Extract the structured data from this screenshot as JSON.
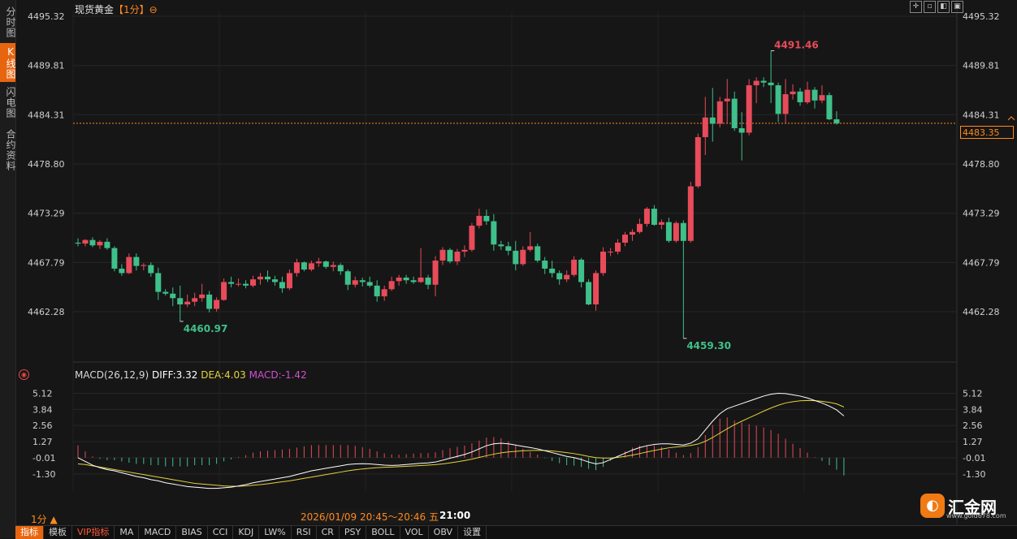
{
  "side_tabs": [
    {
      "label": "分时图",
      "active": false
    },
    {
      "label": "K线图",
      "active": true
    },
    {
      "label": "闪电图",
      "active": false
    },
    {
      "label": "合约资料",
      "active": false
    }
  ],
  "header": {
    "instrument": "现货黄金",
    "period_tag": "【1分】",
    "period_icon": "⊖"
  },
  "toolbar": {
    "icons": [
      "crosshair-icon",
      "zoom-in-icon",
      "zoom-out-icon",
      "fullscreen-icon"
    ]
  },
  "price_axis": {
    "ticks": [
      "4495.32",
      "4489.81",
      "4484.31",
      "4478.80",
      "4473.29",
      "4467.79",
      "4462.28"
    ],
    "range": [
      4457.2,
      4495.32
    ]
  },
  "current_price": {
    "label": "4483.35",
    "value": 4483.35
  },
  "annotations": {
    "high": "4491.46",
    "low_left": "4460.97",
    "low_main": "4459.30"
  },
  "macd": {
    "label": "MACD(26,12,9)",
    "diff_label": "DIFF:3.32",
    "dea_label": "DEA:4.03",
    "macd_label": "MACD:-1.42",
    "ticks": [
      "5.12",
      "3.84",
      "2.56",
      "1.27",
      "-0.01",
      "-1.30"
    ]
  },
  "colors": {
    "up": "#e84b5a",
    "down": "#3fc08a",
    "dea": "#e6d23a",
    "diff": "#ffffff",
    "accent": "#ff8a1f",
    "macd_text": "#d050d0"
  },
  "footer": {
    "period": "1分 ▲",
    "time_range": "2026/01/09 20:45～20:46 五",
    "time_end": "21:00",
    "tabs": [
      "指标",
      "模板",
      "VIP指标",
      "MA",
      "MACD",
      "BIAS",
      "CCI",
      "KDJ",
      "LW%",
      "RSI",
      "CR",
      "PSY",
      "BOLL",
      "VOL",
      "OBV",
      "设置"
    ]
  },
  "logo": {
    "name": "汇金网",
    "url": "www.gold678.com"
  },
  "chart_data": {
    "type": "candlestick",
    "title": "现货黄金【1分】",
    "ylim": [
      4457.2,
      4495.32
    ],
    "candles": [
      [
        4470.0,
        4470.5,
        4469.6,
        4469.9
      ],
      [
        4469.9,
        4470.4,
        4469.6,
        4470.3
      ],
      [
        4470.3,
        4470.6,
        4469.5,
        4469.7
      ],
      [
        4469.7,
        4470.3,
        4469.3,
        4470.1
      ],
      [
        4470.1,
        4470.5,
        4469.2,
        4469.4
      ],
      [
        4469.4,
        4469.6,
        4466.8,
        4467.1
      ],
      [
        4467.1,
        4467.6,
        4466.3,
        4466.6
      ],
      [
        4466.6,
        4468.8,
        4466.5,
        4468.4
      ],
      [
        4468.4,
        4468.8,
        4466.9,
        4467.4
      ],
      [
        4467.4,
        4467.7,
        4466.9,
        4467.5
      ],
      [
        4467.5,
        4467.8,
        4466.2,
        4466.6
      ],
      [
        4466.6,
        4467.2,
        4463.6,
        4464.5
      ],
      [
        4464.5,
        4464.8,
        4464.1,
        4464.3
      ],
      [
        4464.3,
        4465.0,
        4462.9,
        4463.8
      ],
      [
        4463.8,
        4465.2,
        4461.2,
        4463.1
      ],
      [
        4463.1,
        4464.2,
        4462.8,
        4463.4
      ],
      [
        4463.4,
        4464.4,
        4462.9,
        4463.8
      ],
      [
        4463.8,
        4465.4,
        4463.4,
        4464.2
      ],
      [
        4464.2,
        4464.6,
        4462.2,
        4462.6
      ],
      [
        4462.6,
        4463.9,
        4462.3,
        4463.6
      ],
      [
        4463.6,
        4466.0,
        4463.5,
        4465.6
      ],
      [
        4465.6,
        4466.2,
        4465.0,
        4465.4
      ],
      [
        4465.4,
        4466.0,
        4465.1,
        4465.4
      ],
      [
        4465.4,
        4465.8,
        4464.9,
        4465.2
      ],
      [
        4465.2,
        4466.3,
        4465.0,
        4465.9
      ],
      [
        4465.9,
        4466.6,
        4465.3,
        4466.2
      ],
      [
        4466.2,
        4466.9,
        4465.6,
        4465.9
      ],
      [
        4465.9,
        4466.3,
        4465.2,
        4465.6
      ],
      [
        4465.6,
        4466.2,
        4464.4,
        4464.9
      ],
      [
        4464.9,
        4467.0,
        4464.7,
        4466.6
      ],
      [
        4466.6,
        4468.2,
        4466.2,
        4467.8
      ],
      [
        4467.8,
        4467.9,
        4466.8,
        4467.0
      ],
      [
        4467.0,
        4468.0,
        4466.8,
        4467.7
      ],
      [
        4467.7,
        4468.3,
        4467.3,
        4467.9
      ],
      [
        4467.9,
        4468.0,
        4467.1,
        4467.3
      ],
      [
        4467.3,
        4467.9,
        4466.8,
        4467.5
      ],
      [
        4467.5,
        4467.7,
        4466.4,
        4466.8
      ],
      [
        4466.8,
        4467.0,
        4464.7,
        4465.3
      ],
      [
        4465.3,
        4466.2,
        4465.0,
        4465.8
      ],
      [
        4465.8,
        4466.1,
        4465.1,
        4465.6
      ],
      [
        4465.6,
        4466.2,
        4465.0,
        4465.2
      ],
      [
        4465.2,
        4465.8,
        4463.4,
        4464.0
      ],
      [
        4464.0,
        4465.2,
        4463.5,
        4464.8
      ],
      [
        4464.8,
        4466.2,
        4464.6,
        4465.7
      ],
      [
        4465.7,
        4466.4,
        4465.2,
        4466.1
      ],
      [
        4466.1,
        4466.4,
        4465.4,
        4465.8
      ],
      [
        4465.8,
        4466.2,
        4465.4,
        4465.6
      ],
      [
        4465.6,
        4469.4,
        4465.5,
        4466.1
      ],
      [
        4466.1,
        4466.4,
        4464.8,
        4465.3
      ],
      [
        4465.3,
        4468.5,
        4464.0,
        4468.0
      ],
      [
        4468.0,
        4469.5,
        4467.5,
        4469.2
      ],
      [
        4469.2,
        4469.4,
        4467.7,
        4467.9
      ],
      [
        4467.9,
        4469.3,
        4467.5,
        4469.0
      ],
      [
        4469.0,
        4469.7,
        4468.4,
        4469.2
      ],
      [
        4469.2,
        4472.2,
        4469.0,
        4471.9
      ],
      [
        4471.9,
        4473.8,
        4471.6,
        4473.0
      ],
      [
        4473.0,
        4473.7,
        4472.0,
        4472.4
      ],
      [
        4472.4,
        4473.2,
        4469.1,
        4469.8
      ],
      [
        4469.8,
        4470.2,
        4469.2,
        4469.6
      ],
      [
        4469.6,
        4470.1,
        4468.6,
        4469.1
      ],
      [
        4469.1,
        4470.2,
        4466.9,
        4467.6
      ],
      [
        4467.6,
        4469.6,
        4467.4,
        4469.2
      ],
      [
        4469.2,
        4471.2,
        4469.0,
        4469.6
      ],
      [
        4469.6,
        4469.9,
        4467.8,
        4468.0
      ],
      [
        4468.0,
        4468.4,
        4466.5,
        4467.1
      ],
      [
        4467.1,
        4468.0,
        4466.1,
        4466.6
      ],
      [
        4466.6,
        4466.9,
        4465.3,
        4465.9
      ],
      [
        4465.9,
        4466.9,
        4465.6,
        4466.4
      ],
      [
        4466.4,
        4468.5,
        4466.2,
        4468.1
      ],
      [
        4468.1,
        4468.3,
        4465.0,
        4465.6
      ],
      [
        4465.6,
        4465.9,
        4463.0,
        4463.1
      ],
      [
        4463.1,
        4466.9,
        4462.4,
        4466.6
      ],
      [
        4466.6,
        4469.5,
        4466.3,
        4469.0
      ],
      [
        4469.0,
        4469.4,
        4468.5,
        4469.0
      ],
      [
        4469.0,
        4470.4,
        4468.7,
        4470.0
      ],
      [
        4470.0,
        4471.2,
        4469.6,
        4470.9
      ],
      [
        4470.9,
        4471.5,
        4470.2,
        4471.2
      ],
      [
        4471.2,
        4472.7,
        4471.0,
        4472.1
      ],
      [
        4472.1,
        4474.0,
        4471.8,
        4473.8
      ],
      [
        4473.8,
        4474.2,
        4471.9,
        4472.0
      ],
      [
        4472.0,
        4472.6,
        4471.5,
        4472.3
      ],
      [
        4472.3,
        4472.8,
        4470.0,
        4470.2
      ],
      [
        4470.2,
        4472.4,
        4470.0,
        4472.2
      ],
      [
        4472.2,
        4472.5,
        4459.3,
        4470.2
      ],
      [
        4470.2,
        4476.8,
        4470.0,
        4476.3
      ],
      [
        4476.3,
        4482.2,
        4476.1,
        4481.8
      ],
      [
        4481.8,
        4486.3,
        4479.8,
        4484.0
      ],
      [
        4484.0,
        4487.3,
        4481.3,
        4483.3
      ],
      [
        4483.3,
        4486.3,
        4482.9,
        4485.8
      ],
      [
        4485.8,
        4488.3,
        4483.3,
        4486.1
      ],
      [
        4486.1,
        4486.9,
        4482.5,
        4482.8
      ],
      [
        4482.8,
        4484.6,
        4479.2,
        4482.3
      ],
      [
        4482.3,
        4488.3,
        4482.0,
        4487.6
      ],
      [
        4487.6,
        4488.5,
        4485.6,
        4488.1
      ],
      [
        4488.1,
        4488.5,
        4487.4,
        4487.9
      ],
      [
        4487.9,
        4491.46,
        4485.6,
        4487.6
      ],
      [
        4487.6,
        4487.9,
        4483.5,
        4484.4
      ],
      [
        4484.4,
        4488.3,
        4483.4,
        4486.6
      ],
      [
        4486.6,
        4487.7,
        4486.0,
        4486.9
      ],
      [
        4486.9,
        4487.3,
        4485.3,
        4485.7
      ],
      [
        4485.7,
        4488.0,
        4485.5,
        4487.1
      ],
      [
        4487.1,
        4487.4,
        4485.0,
        4485.9
      ],
      [
        4485.9,
        4487.6,
        4485.6,
        4486.5
      ],
      [
        4486.5,
        4486.8,
        4483.7,
        4483.8
      ],
      [
        4483.8,
        4484.7,
        4483.2,
        4483.35
      ]
    ],
    "macd_ylim": [
      -2.6,
      5.8
    ],
    "diff": [
      -0.01,
      -0.3,
      -0.6,
      -0.8,
      -0.95,
      -1.05,
      -1.2,
      -1.35,
      -1.5,
      -1.6,
      -1.75,
      -1.85,
      -2.0,
      -2.1,
      -2.2,
      -2.3,
      -2.35,
      -2.4,
      -2.45,
      -2.45,
      -2.4,
      -2.35,
      -2.25,
      -2.15,
      -2.0,
      -1.9,
      -1.8,
      -1.7,
      -1.6,
      -1.5,
      -1.35,
      -1.2,
      -1.05,
      -0.95,
      -0.85,
      -0.75,
      -0.65,
      -0.55,
      -0.5,
      -0.48,
      -0.5,
      -0.55,
      -0.6,
      -0.62,
      -0.6,
      -0.55,
      -0.5,
      -0.45,
      -0.42,
      -0.35,
      -0.2,
      -0.05,
      0.1,
      0.25,
      0.45,
      0.7,
      0.95,
      1.1,
      1.15,
      1.1,
      1.0,
      0.9,
      0.8,
      0.7,
      0.55,
      0.4,
      0.25,
      0.1,
      0.0,
      -0.15,
      -0.35,
      -0.5,
      -0.4,
      -0.15,
      0.1,
      0.35,
      0.6,
      0.8,
      0.95,
      1.05,
      1.1,
      1.1,
      1.05,
      1.0,
      1.15,
      1.5,
      2.2,
      2.9,
      3.5,
      3.9,
      4.1,
      4.3,
      4.5,
      4.7,
      4.9,
      5.05,
      5.12,
      5.1,
      5.0,
      4.9,
      4.75,
      4.55,
      4.35,
      4.1,
      3.8,
      3.32
    ],
    "dea": [
      -0.5,
      -0.55,
      -0.65,
      -0.75,
      -0.85,
      -0.95,
      -1.05,
      -1.15,
      -1.25,
      -1.35,
      -1.45,
      -1.55,
      -1.65,
      -1.75,
      -1.85,
      -1.95,
      -2.05,
      -2.1,
      -2.15,
      -2.2,
      -2.25,
      -2.28,
      -2.28,
      -2.25,
      -2.2,
      -2.15,
      -2.08,
      -2.0,
      -1.92,
      -1.85,
      -1.75,
      -1.65,
      -1.55,
      -1.45,
      -1.35,
      -1.25,
      -1.15,
      -1.05,
      -0.97,
      -0.9,
      -0.85,
      -0.8,
      -0.77,
      -0.75,
      -0.72,
      -0.69,
      -0.66,
      -0.63,
      -0.6,
      -0.56,
      -0.5,
      -0.42,
      -0.33,
      -0.23,
      -0.12,
      0.02,
      0.15,
      0.28,
      0.38,
      0.45,
      0.5,
      0.55,
      0.57,
      0.58,
      0.57,
      0.53,
      0.47,
      0.4,
      0.32,
      0.22,
      0.1,
      0.0,
      -0.03,
      -0.03,
      0.02,
      0.1,
      0.2,
      0.32,
      0.45,
      0.57,
      0.68,
      0.78,
      0.85,
      0.9,
      0.97,
      1.08,
      1.3,
      1.6,
      1.95,
      2.3,
      2.62,
      2.9,
      3.17,
      3.43,
      3.7,
      3.95,
      4.17,
      4.35,
      4.45,
      4.52,
      4.55,
      4.53,
      4.48,
      4.4,
      4.28,
      4.03
    ]
  }
}
